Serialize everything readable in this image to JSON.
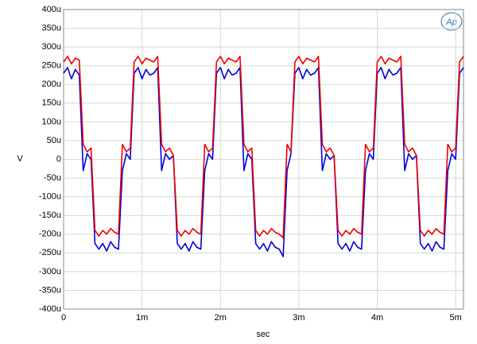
{
  "chart_data": {
    "type": "line",
    "logo": "Ap",
    "xlabel": "sec",
    "ylabel": "V",
    "x": [
      0,
      5e-05,
      0.0001,
      0.00015,
      0.0002,
      0.00025,
      0.0003,
      0.00035,
      0.0004,
      0.00045,
      0.0005,
      0.00055,
      0.0006,
      0.00065,
      0.0007,
      0.00075,
      0.0008,
      0.00085,
      0.0009,
      0.00095,
      0.001,
      0.00105,
      0.0011,
      0.00115,
      0.0012,
      0.00125,
      0.0013,
      0.00135,
      0.0014,
      0.00145,
      0.0015,
      0.00155,
      0.0016,
      0.00165,
      0.0017,
      0.00175,
      0.0018,
      0.00185,
      0.0019,
      0.00195,
      0.002,
      0.00205,
      0.0021,
      0.00215,
      0.0022,
      0.00225,
      0.0023,
      0.00235,
      0.0024,
      0.00245,
      0.0025,
      0.00255,
      0.0026,
      0.00265,
      0.0027,
      0.00275,
      0.0028,
      0.00285,
      0.0029,
      0.00295,
      0.003,
      0.00305,
      0.0031,
      0.00315,
      0.0032,
      0.00325,
      0.0033,
      0.00335,
      0.0034,
      0.00345,
      0.0035,
      0.00355,
      0.0036,
      0.00365,
      0.0037,
      0.00375,
      0.0038,
      0.00385,
      0.0039,
      0.00395,
      0.004,
      0.00405,
      0.0041,
      0.00415,
      0.0042,
      0.00425,
      0.0043,
      0.00435,
      0.0044,
      0.00445,
      0.0045,
      0.00455,
      0.0046,
      0.00465,
      0.0047,
      0.00475,
      0.0048,
      0.00485,
      0.0049,
      0.00495,
      0.005,
      0.00505,
      0.0051
    ],
    "series": [
      {
        "color": "#ee0000",
        "values": [
          0.00026,
          0.000275,
          0.000255,
          0.00027,
          0.000265,
          4e-05,
          2e-05,
          3e-05,
          -0.00019,
          -0.000205,
          -0.00019,
          -0.0002,
          -0.000185,
          -0.000195,
          -0.0002,
          4e-05,
          2e-05,
          3e-05,
          0.00026,
          0.000275,
          0.000255,
          0.00027,
          0.000265,
          0.00026,
          0.000275,
          4e-05,
          2e-05,
          3e-05,
          1e-05,
          -0.00019,
          -0.000205,
          -0.00019,
          -0.0002,
          -0.000185,
          -0.000195,
          -0.0002,
          4e-05,
          2e-05,
          3e-05,
          0.00026,
          0.000275,
          0.000255,
          0.00027,
          0.000265,
          0.00026,
          0.000275,
          4e-05,
          2e-05,
          3e-05,
          -0.00019,
          -0.000205,
          -0.00019,
          -0.0002,
          -0.000185,
          -0.000195,
          -0.0002,
          -0.00021,
          4e-05,
          2e-05,
          0.00026,
          0.000275,
          0.000255,
          0.00027,
          0.000265,
          0.00026,
          0.000275,
          4e-05,
          2e-05,
          3e-05,
          1e-05,
          -0.00019,
          -0.000205,
          -0.00019,
          -0.0002,
          -0.000185,
          -0.000195,
          -0.0002,
          4e-05,
          2e-05,
          3e-05,
          0.00026,
          0.000275,
          0.000255,
          0.00027,
          0.000265,
          0.00026,
          0.000275,
          4e-05,
          2e-05,
          3e-05,
          1e-05,
          -0.00019,
          -0.000205,
          -0.00019,
          -0.0002,
          -0.000185,
          -0.000195,
          -0.0002,
          4e-05,
          2e-05,
          3e-05,
          0.00026,
          0.000275
        ]
      },
      {
        "color": "#0000dd",
        "values": [
          0.00023,
          0.000245,
          0.000215,
          0.00024,
          0.000225,
          -3e-05,
          1.5e-05,
          0,
          -0.000225,
          -0.00024,
          -0.000225,
          -0.000245,
          -0.00022,
          -0.000235,
          -0.00024,
          -3e-05,
          1.5e-05,
          0,
          0.00023,
          0.000245,
          0.000215,
          0.00024,
          0.000225,
          0.00023,
          0.000245,
          -3e-05,
          1.5e-05,
          0,
          1e-05,
          -0.000225,
          -0.00024,
          -0.000225,
          -0.000245,
          -0.00022,
          -0.000235,
          -0.00024,
          -3e-05,
          1.5e-05,
          0,
          0.00023,
          0.000245,
          0.000215,
          0.00024,
          0.000225,
          0.00023,
          0.000245,
          -3e-05,
          1.5e-05,
          0,
          -0.000225,
          -0.00024,
          -0.000225,
          -0.000245,
          -0.00022,
          -0.000235,
          -0.00024,
          -0.00026,
          -3e-05,
          1.5e-05,
          0.00023,
          0.000245,
          0.000215,
          0.00024,
          0.000225,
          0.00023,
          0.000245,
          -3e-05,
          1.5e-05,
          0,
          1e-05,
          -0.000225,
          -0.00024,
          -0.000225,
          -0.000245,
          -0.00022,
          -0.000235,
          -0.00024,
          -3e-05,
          1.5e-05,
          0,
          0.00023,
          0.000245,
          0.000215,
          0.00024,
          0.000225,
          0.00023,
          0.000245,
          -3e-05,
          1.5e-05,
          0,
          1e-05,
          -0.000225,
          -0.00024,
          -0.000225,
          -0.000245,
          -0.00022,
          -0.000235,
          -0.00024,
          -3e-05,
          1.5e-05,
          0,
          0.00023,
          0.000245
        ]
      }
    ],
    "xlim": [
      0,
      0.0051
    ],
    "xticks": [
      0,
      {
        "value": 0.001,
        "label": "1m"
      },
      {
        "value": 0.002,
        "label": "2m"
      },
      {
        "value": 0.003,
        "label": "3m"
      },
      {
        "value": 0.004,
        "label": "4m"
      },
      {
        "value": 0.005,
        "label": "5m"
      }
    ],
    "ylim": [
      -0.0004,
      0.0004
    ],
    "yticks": [
      {
        "value": 0.0004,
        "label": "400u"
      },
      {
        "value": 0.00035,
        "label": "350u"
      },
      {
        "value": 0.0003,
        "label": "300u"
      },
      {
        "value": 0.00025,
        "label": "250u"
      },
      {
        "value": 0.0002,
        "label": "200u"
      },
      {
        "value": 0.00015,
        "label": "150u"
      },
      {
        "value": 0.0001,
        "label": "100u"
      },
      {
        "value": 5e-05,
        "label": "50u"
      },
      0,
      {
        "value": -5e-05,
        "label": "-50u"
      },
      {
        "value": -0.0001,
        "label": "-100u"
      },
      {
        "value": -0.00015,
        "label": "-150u"
      },
      {
        "value": -0.0002,
        "label": "-200u"
      },
      {
        "value": -0.00025,
        "label": "-250u"
      },
      {
        "value": -0.0003,
        "label": "-300u"
      },
      {
        "value": -0.00035,
        "label": "-350u"
      },
      {
        "value": -0.0004,
        "label": "-400u"
      }
    ],
    "grid": true
  }
}
